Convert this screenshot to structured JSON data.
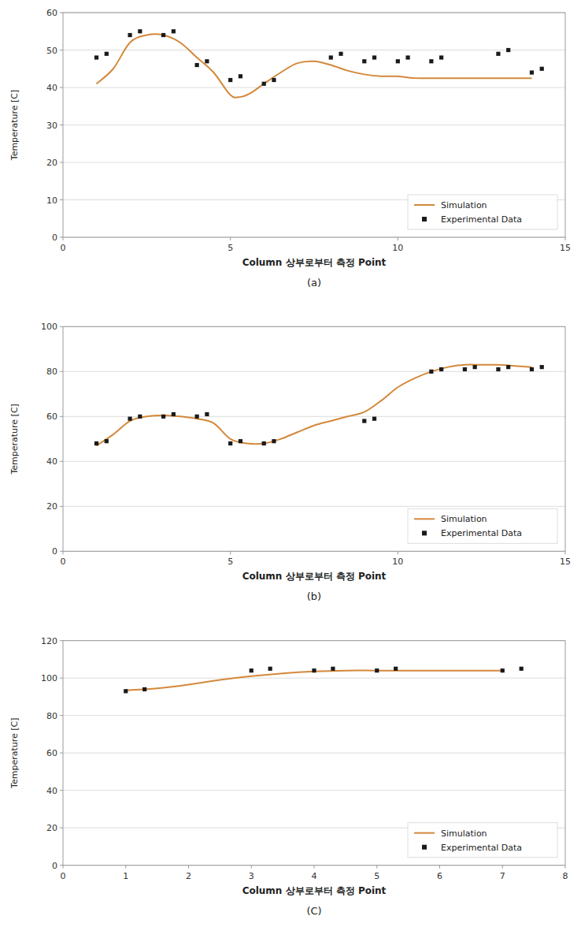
{
  "chart_data": [
    {
      "type": "line",
      "title": "(a)",
      "xlabel": "Column 상부로부터 측정 Point",
      "ylabel": "Temperature [C]",
      "xlim": [
        0,
        15
      ],
      "ylim": [
        0,
        60
      ],
      "xticks": [
        0,
        5,
        10,
        15
      ],
      "yticks": [
        0,
        10,
        20,
        30,
        40,
        50,
        60
      ],
      "grid": true,
      "legend": "lower right",
      "series": [
        {
          "name": "Simulation",
          "type": "line",
          "color": "#D4883A",
          "line_style": "solid",
          "x": [
            1,
            1.5,
            2,
            2.5,
            3,
            3.5,
            4,
            4.5,
            5,
            5.3,
            5.6,
            6.0,
            6.5,
            7.0,
            7.5,
            8.0,
            8.5,
            9.0,
            9.5,
            10.0,
            10.5,
            11.0,
            11.5,
            12.0,
            12.5,
            13.0,
            13.5,
            14.0
          ],
          "values": [
            41,
            45,
            52,
            54,
            54,
            52,
            48,
            44,
            38,
            37.5,
            38.5,
            41,
            44,
            46.5,
            47,
            46,
            44.5,
            43.5,
            43,
            43,
            42.5,
            42.5,
            42.5,
            42.5,
            42.5,
            42.5,
            42.5,
            42.5
          ]
        },
        {
          "name": "Experimental Data",
          "type": "scatter",
          "color": "#1a1a1a",
          "marker": "square",
          "x": [
            1.0,
            1.3,
            2.0,
            2.3,
            3.0,
            3.3,
            4.0,
            4.3,
            5.0,
            5.3,
            6.0,
            6.3,
            8.0,
            8.3,
            9.0,
            9.3,
            10.0,
            10.3,
            11.0,
            11.3,
            13.0,
            13.3,
            14.0,
            14.3
          ],
          "values": [
            48,
            49,
            54,
            55,
            54,
            55,
            46,
            47,
            42,
            43,
            41,
            42,
            48,
            49,
            47,
            48,
            47,
            48,
            47,
            48,
            49,
            50,
            44,
            45
          ]
        }
      ]
    },
    {
      "type": "line",
      "title": "(b)",
      "xlabel": "Column 상부로부터 측정 Point",
      "ylabel": "Temperature [C]",
      "xlim": [
        0,
        15
      ],
      "ylim": [
        0,
        100
      ],
      "xticks": [
        0,
        5,
        10,
        15
      ],
      "yticks": [
        0,
        20,
        40,
        60,
        80,
        100
      ],
      "grid": true,
      "legend": "lower right",
      "series": [
        {
          "name": "Simulation",
          "type": "line",
          "color": "#D4883A",
          "line_style": "solid",
          "x": [
            1,
            1.5,
            2,
            2.5,
            3,
            3.5,
            4,
            4.5,
            5,
            5.5,
            6,
            6.5,
            7,
            7.5,
            8,
            8.5,
            9,
            9.5,
            10,
            10.5,
            11,
            11.5,
            12,
            12.5,
            13,
            13.5,
            14
          ],
          "values": [
            47,
            52,
            58,
            60,
            60.5,
            60,
            59,
            57,
            50,
            48,
            48,
            50,
            53,
            56,
            58,
            60,
            62,
            67,
            73,
            77,
            80,
            82,
            83,
            83,
            83,
            82.5,
            82
          ]
        },
        {
          "name": "Experimental Data",
          "type": "scatter",
          "color": "#1a1a1a",
          "marker": "square",
          "x": [
            1.0,
            1.3,
            2.0,
            2.3,
            3.0,
            3.3,
            4.0,
            4.3,
            5.0,
            5.3,
            6.0,
            6.3,
            9.0,
            9.3,
            11.0,
            11.3,
            12.0,
            12.3,
            13.0,
            13.3,
            14.0,
            14.3
          ],
          "values": [
            48,
            49,
            59,
            60,
            60,
            61,
            60,
            61,
            48,
            49,
            48,
            49,
            58,
            59,
            80,
            81,
            81,
            82,
            81,
            82,
            81,
            82
          ]
        }
      ]
    },
    {
      "type": "line",
      "title": "(C)",
      "xlabel": "Column 상부로부터 측정 Point",
      "ylabel": "Temperature [C]",
      "xlim": [
        0,
        8
      ],
      "ylim": [
        0,
        120
      ],
      "xticks": [
        0,
        1,
        2,
        3,
        4,
        5,
        6,
        7,
        8
      ],
      "yticks": [
        0,
        20,
        40,
        60,
        80,
        100,
        120
      ],
      "grid": true,
      "legend": "lower right",
      "series": [
        {
          "name": "Simulation",
          "type": "line",
          "color": "#D4883A",
          "line_style": "solid",
          "x": [
            1,
            1.5,
            2,
            2.5,
            3,
            3.5,
            4,
            4.5,
            5,
            5.5,
            6,
            6.5,
            7
          ],
          "values": [
            93.5,
            94.5,
            96.5,
            99,
            101,
            102.5,
            103.5,
            104,
            104,
            104,
            104,
            104,
            104
          ]
        },
        {
          "name": "Experimental Data",
          "type": "scatter",
          "color": "#1a1a1a",
          "marker": "square",
          "x": [
            1.0,
            1.3,
            3.0,
            3.3,
            4.0,
            4.3,
            5.0,
            5.3,
            7.0,
            7.3
          ],
          "values": [
            93,
            94,
            104,
            105,
            104,
            105,
            104,
            105,
            104,
            105
          ]
        }
      ]
    }
  ]
}
